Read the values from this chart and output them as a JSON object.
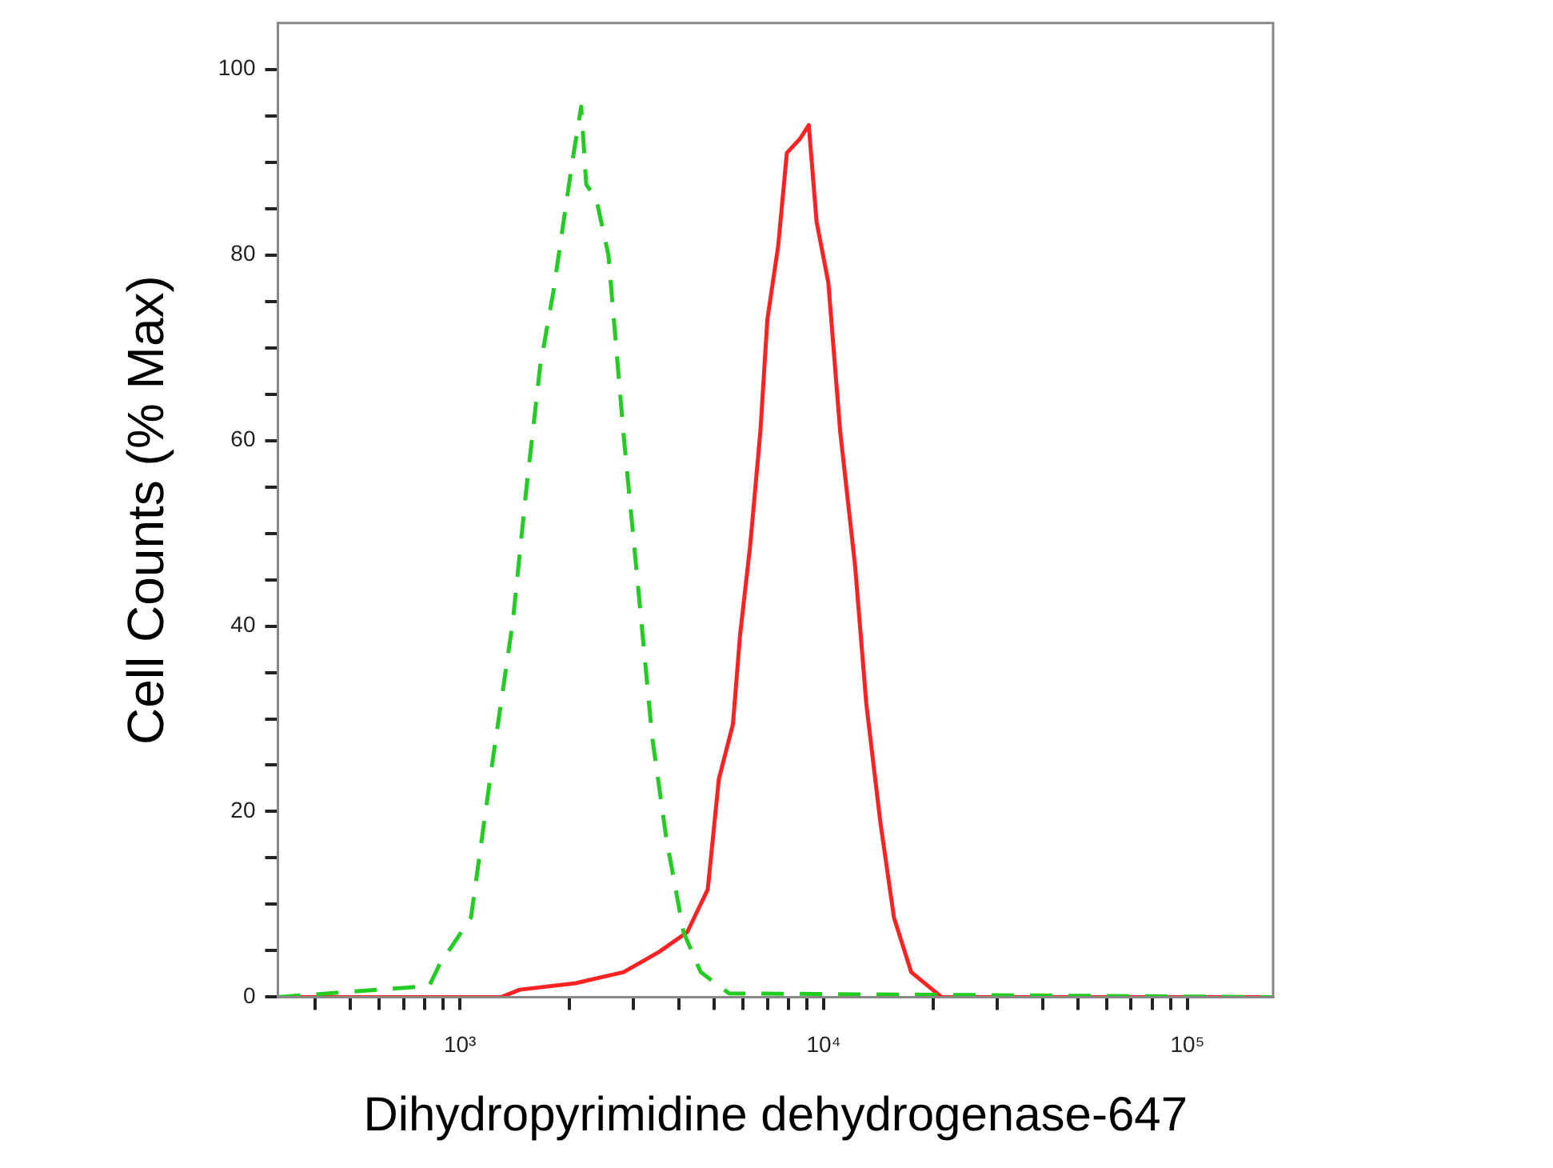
{
  "chart_data": {
    "type": "line",
    "xlabel": "Dihydropyrimidine dehydrogenase-647",
    "ylabel": "Cell Counts (% Max)",
    "log": "x",
    "xlim": [
      316,
      172000
    ],
    "ylim": [
      0,
      105
    ],
    "xticks": [
      {
        "value": 400,
        "label": null
      },
      {
        "value": 500,
        "label": null
      },
      {
        "value": 600,
        "label": null
      },
      {
        "value": 700,
        "label": null
      },
      {
        "value": 800,
        "label": null
      },
      {
        "value": 900,
        "label": null
      },
      {
        "value": 1000,
        "label": "10³"
      },
      {
        "value": 2000,
        "label": null
      },
      {
        "value": 3000,
        "label": null
      },
      {
        "value": 4000,
        "label": null
      },
      {
        "value": 5000,
        "label": null
      },
      {
        "value": 6000,
        "label": null
      },
      {
        "value": 7000,
        "label": null
      },
      {
        "value": 8000,
        "label": null
      },
      {
        "value": 9000,
        "label": null
      },
      {
        "value": 10000,
        "label": "10⁴"
      },
      {
        "value": 20000,
        "label": null
      },
      {
        "value": 30000,
        "label": null
      },
      {
        "value": 40000,
        "label": null
      },
      {
        "value": 50000,
        "label": null
      },
      {
        "value": 60000,
        "label": null
      },
      {
        "value": 70000,
        "label": null
      },
      {
        "value": 80000,
        "label": null
      },
      {
        "value": 90000,
        "label": null
      },
      {
        "value": 100000,
        "label": "10⁵"
      }
    ],
    "yticks": [
      0,
      {
        "value": 5,
        "label": null
      },
      {
        "value": 10,
        "label": null
      },
      {
        "value": 15,
        "label": null
      },
      20,
      {
        "value": 25,
        "label": null
      },
      {
        "value": 30,
        "label": null
      },
      {
        "value": 35,
        "label": null
      },
      40,
      {
        "value": 45,
        "label": null
      },
      {
        "value": 50,
        "label": null
      },
      {
        "value": 55,
        "label": null
      },
      60,
      {
        "value": 65,
        "label": null
      },
      {
        "value": 70,
        "label": null
      },
      {
        "value": 75,
        "label": null
      },
      80,
      {
        "value": 85,
        "label": null
      },
      {
        "value": 90,
        "label": null
      },
      {
        "value": 95,
        "label": null
      },
      100
    ],
    "series": [
      {
        "color": "#22cc22",
        "line_style": "dashed",
        "x": [
          316,
          823,
          876,
          1073,
          1225,
          1398,
          1525,
          1662,
          1806,
          2036,
          2155,
          2225,
          2372,
          2560,
          2820,
          3093,
          3378,
          3697,
          4120,
          4590,
          5490,
          172000
        ],
        "values": [
          0,
          1.2,
          3.4,
          8.6,
          25,
          40.5,
          55,
          68,
          76,
          90,
          96,
          87.6,
          86,
          80,
          60.5,
          44,
          28,
          17,
          7,
          2.7,
          0.4,
          0
        ]
      },
      {
        "color": "#ff2222",
        "line_style": "solid",
        "x": [
          316,
          1300,
          1460,
          2080,
          2820,
          3535,
          4215,
          4800,
          5150,
          5630,
          5890,
          6280,
          6700,
          7000,
          7500,
          7920,
          8600,
          9100,
          9560,
          10300,
          11100,
          12200,
          13100,
          14300,
          15600,
          17400,
          21100,
          172000
        ],
        "values": [
          0,
          0,
          0.8,
          1.5,
          2.7,
          4.9,
          7,
          11.6,
          23.5,
          29.4,
          39,
          48.7,
          61,
          73,
          81,
          91,
          92.5,
          94,
          83.6,
          77,
          61,
          46.5,
          31.6,
          19,
          8.6,
          2.7,
          0,
          0
        ]
      }
    ]
  }
}
